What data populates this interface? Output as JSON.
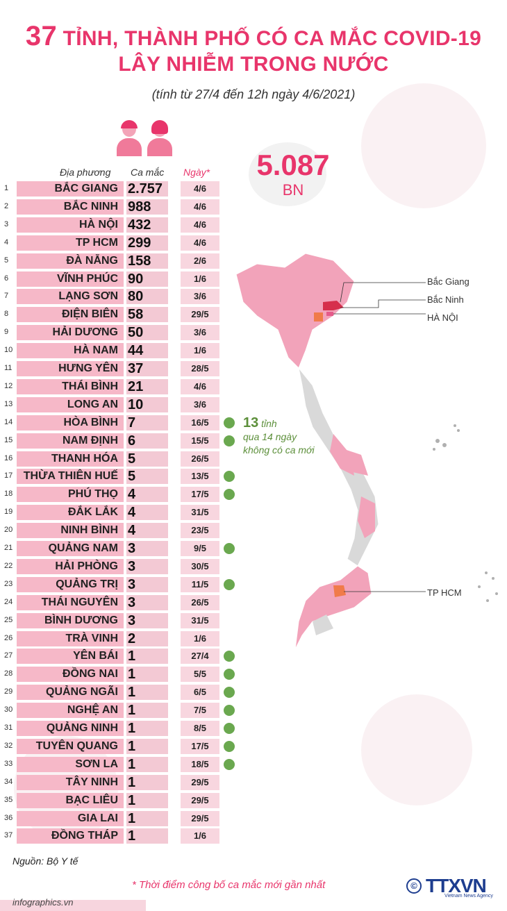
{
  "title": {
    "number": "37",
    "line1_rest": " TỈNH, THÀNH PHỐ CÓ CA MẮC COVID-19",
    "line2": "LÂY NHIỄM TRONG NƯỚC"
  },
  "subtitle": "(tính từ 27/4 đến 12h ngày 4/6/2021)",
  "columns": {
    "place": "Địa phương",
    "cases": "Ca mắc",
    "day": "Ngày*"
  },
  "total": {
    "number": "5.087",
    "unit": "BN"
  },
  "colors": {
    "accent": "#e8356b",
    "row": "#f6b8c8",
    "green": "#6aa84f",
    "map_fill": "#f2a3ba",
    "map_hotspot": "#d62f4c",
    "map_orange": "#f07b4a",
    "map_grey": "#d9d9d9"
  },
  "rows": [
    {
      "idx": "1",
      "name": "BẮC GIANG",
      "cases": "2.757",
      "day": "4/6",
      "no_new": false
    },
    {
      "idx": "2",
      "name": "BẮC NINH",
      "cases": "988",
      "day": "4/6",
      "no_new": false
    },
    {
      "idx": "3",
      "name": "HÀ NỘI",
      "cases": "432",
      "day": "4/6",
      "no_new": false
    },
    {
      "idx": "4",
      "name": "TP HCM",
      "cases": "299",
      "day": "4/6",
      "no_new": false
    },
    {
      "idx": "5",
      "name": "ĐÀ NẴNG",
      "cases": "158",
      "day": "2/6",
      "no_new": false
    },
    {
      "idx": "6",
      "name": "VĨNH PHÚC",
      "cases": "90",
      "day": "1/6",
      "no_new": false
    },
    {
      "idx": "7",
      "name": "LẠNG SƠN",
      "cases": "80",
      "day": "3/6",
      "no_new": false
    },
    {
      "idx": "8",
      "name": "ĐIỆN BIÊN",
      "cases": "58",
      "day": "29/5",
      "no_new": false
    },
    {
      "idx": "9",
      "name": "HẢI DƯƠNG",
      "cases": "50",
      "day": "3/6",
      "no_new": false
    },
    {
      "idx": "10",
      "name": "HÀ NAM",
      "cases": "44",
      "day": "1/6",
      "no_new": false
    },
    {
      "idx": "11",
      "name": "HƯNG YÊN",
      "cases": "37",
      "day": "28/5",
      "no_new": false
    },
    {
      "idx": "12",
      "name": "THÁI BÌNH",
      "cases": "21",
      "day": "4/6",
      "no_new": false
    },
    {
      "idx": "13",
      "name": "LONG AN",
      "cases": "10",
      "day": "3/6",
      "no_new": false
    },
    {
      "idx": "14",
      "name": "HÒA BÌNH",
      "cases": "7",
      "day": "16/5",
      "no_new": true
    },
    {
      "idx": "15",
      "name": "NAM ĐỊNH",
      "cases": "6",
      "day": "15/5",
      "no_new": true
    },
    {
      "idx": "16",
      "name": "THANH HÓA",
      "cases": "5",
      "day": "26/5",
      "no_new": false
    },
    {
      "idx": "17",
      "name": "THỪA THIÊN HUẾ",
      "cases": "5",
      "day": "13/5",
      "no_new": true
    },
    {
      "idx": "18",
      "name": "PHÚ THỌ",
      "cases": "4",
      "day": "17/5",
      "no_new": true
    },
    {
      "idx": "19",
      "name": "ĐẮK LẮK",
      "cases": "4",
      "day": "31/5",
      "no_new": false
    },
    {
      "idx": "20",
      "name": "NINH BÌNH",
      "cases": "4",
      "day": "23/5",
      "no_new": false
    },
    {
      "idx": "21",
      "name": "QUẢNG NAM",
      "cases": "3",
      "day": "9/5",
      "no_new": true
    },
    {
      "idx": "22",
      "name": "HẢI PHÒNG",
      "cases": "3",
      "day": "30/5",
      "no_new": false
    },
    {
      "idx": "23",
      "name": "QUẢNG TRỊ",
      "cases": "3",
      "day": "11/5",
      "no_new": true
    },
    {
      "idx": "24",
      "name": "THÁI NGUYÊN",
      "cases": "3",
      "day": "26/5",
      "no_new": false
    },
    {
      "idx": "25",
      "name": "BÌNH DƯƠNG",
      "cases": "3",
      "day": "31/5",
      "no_new": false
    },
    {
      "idx": "26",
      "name": "TRÀ VINH",
      "cases": "2",
      "day": "1/6",
      "no_new": false
    },
    {
      "idx": "27",
      "name": "YÊN BÁI",
      "cases": "1",
      "day": "27/4",
      "no_new": true
    },
    {
      "idx": "28",
      "name": "ĐỒNG NAI",
      "cases": "1",
      "day": "5/5",
      "no_new": true
    },
    {
      "idx": "29",
      "name": "QUẢNG NGÃI",
      "cases": "1",
      "day": "6/5",
      "no_new": true
    },
    {
      "idx": "30",
      "name": "NGHỆ AN",
      "cases": "1",
      "day": "7/5",
      "no_new": true
    },
    {
      "idx": "31",
      "name": "QUẢNG NINH",
      "cases": "1",
      "day": "8/5",
      "no_new": true
    },
    {
      "idx": "32",
      "name": "TUYÊN QUANG",
      "cases": "1",
      "day": "17/5",
      "no_new": true
    },
    {
      "idx": "33",
      "name": "SƠN LA",
      "cases": "1",
      "day": "18/5",
      "no_new": true
    },
    {
      "idx": "34",
      "name": "TÂY NINH",
      "cases": "1",
      "day": "29/5",
      "no_new": false
    },
    {
      "idx": "35",
      "name": "BẠC LIÊU",
      "cases": "1",
      "day": "29/5",
      "no_new": false
    },
    {
      "idx": "36",
      "name": "GIA LAI",
      "cases": "1",
      "day": "29/5",
      "no_new": false
    },
    {
      "idx": "37",
      "name": "ĐỒNG THÁP",
      "cases": "1",
      "day": "1/6",
      "no_new": false
    }
  ],
  "map_labels": {
    "bac_giang": "Bắc Giang",
    "bac_ninh": "Bắc Ninh",
    "ha_noi": "HÀ NỘI",
    "hcm": "TP HCM"
  },
  "note": {
    "count": "13",
    "count_unit": " tỉnh",
    "line2": "qua 14 ngày",
    "line3": "không có ca mới"
  },
  "source": "Nguồn: Bộ Y tế",
  "footnote": "* Thời điểm công bố ca mắc mới gần nhất",
  "brand": {
    "copyright": "©",
    "logo": "TTXVN",
    "sub": "Vietnam News Agency"
  },
  "website": "infographics.vn"
}
